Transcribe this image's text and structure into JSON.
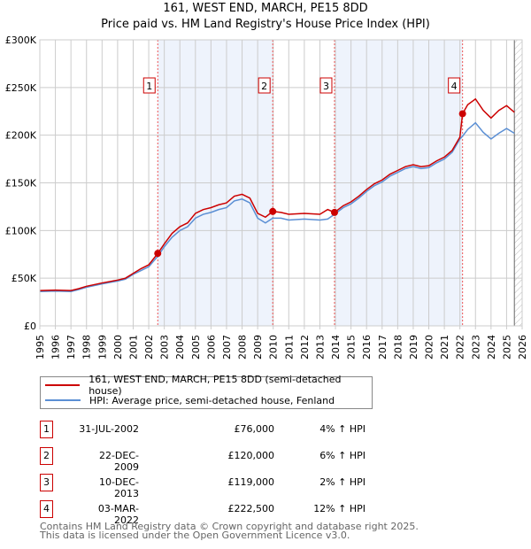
{
  "chart_data": {
    "type": "line",
    "title": "161, WEST END, MARCH, PE15 8DD",
    "subtitle": "Price paid vs. HM Land Registry's House Price Index (HPI)",
    "xlim": [
      1995,
      2026
    ],
    "ylim": [
      0,
      300000
    ],
    "yticks": [
      0,
      50000,
      100000,
      150000,
      200000,
      250000,
      300000
    ],
    "ytick_labels": [
      "£0",
      "£50K",
      "£100K",
      "£150K",
      "£200K",
      "£250K",
      "£300K"
    ],
    "xticks": [
      "1995",
      "1996",
      "1997",
      "1998",
      "1999",
      "2000",
      "2001",
      "2002",
      "2003",
      "2004",
      "2005",
      "2006",
      "2007",
      "2008",
      "2009",
      "2010",
      "2011",
      "2012",
      "2013",
      "2014",
      "2015",
      "2016",
      "2017",
      "2018",
      "2019",
      "2020",
      "2021",
      "2022",
      "2023",
      "2024",
      "2025",
      "2026"
    ],
    "grid": true,
    "colors": {
      "property": "#cc0000",
      "hpi": "#5b8fd4",
      "shade": "#eef3fc"
    },
    "series": [
      {
        "name": "161, WEST END, MARCH, PE15 8DD (semi-detached house)",
        "x": [
          1995,
          1996,
          1997,
          1997.5,
          1998,
          1999,
          2000,
          2000.5,
          2001,
          2001.5,
          2002,
          2002.58,
          2003,
          2003.5,
          2004,
          2004.5,
          2005,
          2005.5,
          2006,
          2006.5,
          2007,
          2007.5,
          2008,
          2008.5,
          2009,
          2009.5,
          2009.97,
          2010.5,
          2011,
          2012,
          2013,
          2013.5,
          2013.94,
          2014.5,
          2015,
          2015.5,
          2016,
          2016.5,
          2017,
          2017.5,
          2018,
          2018.5,
          2019,
          2019.5,
          2020,
          2020.5,
          2021,
          2021.5,
          2022,
          2022.17,
          2022.5,
          2023,
          2023.5,
          2024,
          2024.5,
          2025,
          2025.5
        ],
        "values": [
          37000,
          37500,
          37000,
          39000,
          41500,
          45000,
          48000,
          50000,
          55000,
          60000,
          64000,
          76000,
          86000,
          97000,
          104000,
          108000,
          118000,
          122000,
          124000,
          127000,
          129000,
          136000,
          138000,
          134000,
          118000,
          114000,
          120000,
          119000,
          117000,
          118000,
          117000,
          122000,
          119000,
          126000,
          130000,
          136000,
          143000,
          149000,
          153000,
          159000,
          163000,
          167000,
          169000,
          167000,
          168000,
          173000,
          177000,
          184000,
          198000,
          222500,
          232000,
          238000,
          226000,
          218000,
          226000,
          231000,
          224000
        ]
      },
      {
        "name": "HPI: Average price, semi-detached house, Fenland",
        "x": [
          1995,
          1996,
          1997,
          1997.5,
          1998,
          1999,
          2000,
          2000.5,
          2001,
          2001.5,
          2002,
          2002.58,
          2003,
          2003.5,
          2004,
          2004.5,
          2005,
          2005.5,
          2006,
          2006.5,
          2007,
          2007.5,
          2008,
          2008.5,
          2009,
          2009.5,
          2009.97,
          2010.5,
          2011,
          2012,
          2013,
          2013.5,
          2013.94,
          2014.5,
          2015,
          2015.5,
          2016,
          2016.5,
          2017,
          2017.5,
          2018,
          2018.5,
          2019,
          2019.5,
          2020,
          2020.5,
          2021,
          2021.5,
          2022,
          2022.17,
          2022.5,
          2023,
          2023.5,
          2024,
          2024.5,
          2025,
          2025.5
        ],
        "values": [
          36000,
          36500,
          36000,
          38000,
          40500,
          44000,
          47000,
          49000,
          54000,
          58000,
          62000,
          73000,
          83000,
          93000,
          100000,
          104000,
          113000,
          117000,
          119000,
          122000,
          124000,
          131000,
          133000,
          129000,
          113000,
          108000,
          113000,
          113000,
          111000,
          112000,
          111000,
          112000,
          117000,
          124000,
          128000,
          134000,
          141000,
          147000,
          151000,
          157000,
          161000,
          165000,
          167000,
          165000,
          166000,
          171000,
          175000,
          182000,
          196000,
          199000,
          206000,
          213000,
          203000,
          196000,
          202000,
          207000,
          202000
        ]
      }
    ],
    "sales": [
      {
        "label": "1",
        "x": 2002.58,
        "value": 76000
      },
      {
        "label": "2",
        "x": 2009.97,
        "value": 120000
      },
      {
        "label": "3",
        "x": 2013.94,
        "value": 119000
      },
      {
        "label": "4",
        "x": 2022.17,
        "value": 222500
      }
    ]
  },
  "legend": {
    "property": "161, WEST END, MARCH, PE15 8DD (semi-detached house)",
    "hpi": "HPI: Average price, semi-detached house, Fenland"
  },
  "table": [
    {
      "num": "1",
      "date": "31-JUL-2002",
      "price": "£76,000",
      "hpi": "4% ↑ HPI"
    },
    {
      "num": "2",
      "date": "22-DEC-2009",
      "price": "£120,000",
      "hpi": "6% ↑ HPI"
    },
    {
      "num": "3",
      "date": "10-DEC-2013",
      "price": "£119,000",
      "hpi": "2% ↑ HPI"
    },
    {
      "num": "4",
      "date": "03-MAR-2022",
      "price": "£222,500",
      "hpi": "12% ↑ HPI"
    }
  ],
  "footer": [
    "Contains HM Land Registry data © Crown copyright and database right 2025.",
    "This data is licensed under the Open Government Licence v3.0."
  ]
}
